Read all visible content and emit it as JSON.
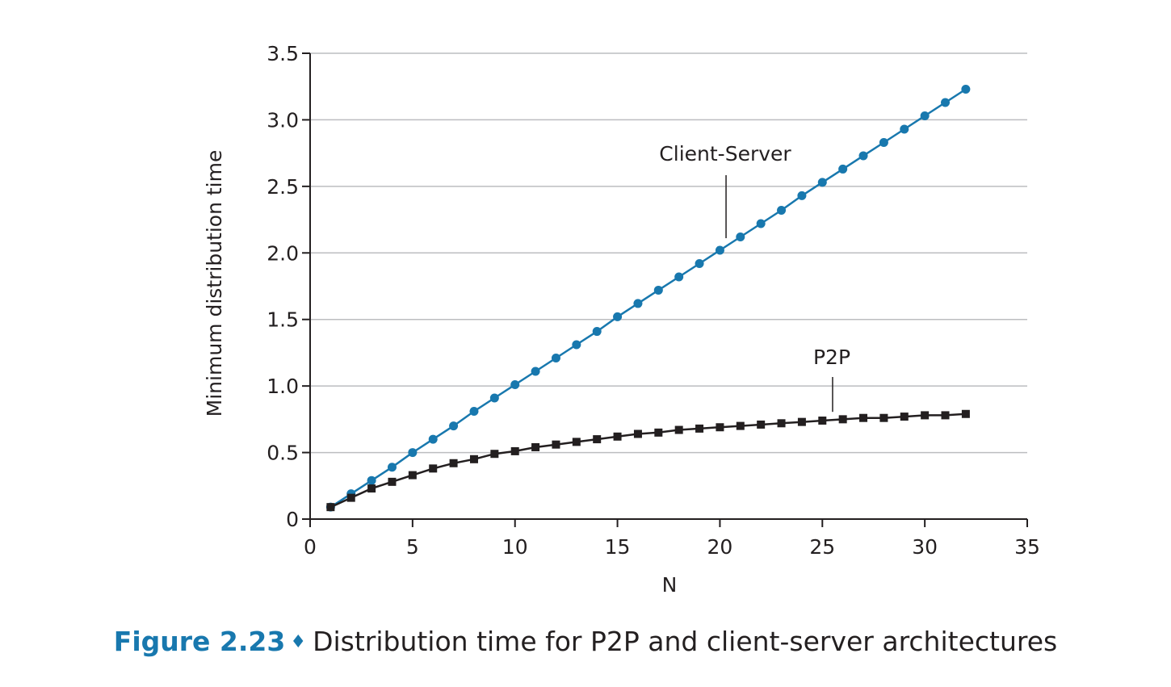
{
  "chart_data": {
    "type": "line",
    "xlabel": "N",
    "ylabel": "Minimum distribution time",
    "xlim": [
      0,
      35
    ],
    "ylim": [
      0,
      3.5
    ],
    "x_ticks": [
      "0",
      "5",
      "10",
      "15",
      "20",
      "25",
      "30",
      "35"
    ],
    "y_ticks": [
      "0",
      "0.5",
      "1.0",
      "1.5",
      "2.0",
      "2.5",
      "3.0",
      "3.5"
    ],
    "x_tick_values": [
      0,
      5,
      10,
      15,
      20,
      25,
      30,
      35
    ],
    "y_tick_values": [
      0,
      0.5,
      1.0,
      1.5,
      2.0,
      2.5,
      3.0,
      3.5
    ],
    "grid": "horizontal",
    "series": [
      {
        "name": "Client-Server",
        "color": "#1878ae",
        "marker": "circle",
        "x": [
          1,
          2,
          3,
          4,
          5,
          6,
          7,
          8,
          9,
          10,
          11,
          12,
          13,
          14,
          15,
          16,
          17,
          18,
          19,
          20,
          21,
          22,
          23,
          24,
          25,
          26,
          27,
          28,
          29,
          30,
          31,
          32
        ],
        "y": [
          0.09,
          0.19,
          0.29,
          0.39,
          0.5,
          0.6,
          0.7,
          0.81,
          0.91,
          1.01,
          1.11,
          1.21,
          1.31,
          1.41,
          1.52,
          1.62,
          1.72,
          1.82,
          1.92,
          2.02,
          2.12,
          2.22,
          2.32,
          2.43,
          2.53,
          2.63,
          2.73,
          2.83,
          2.93,
          3.03,
          3.13,
          3.23
        ]
      },
      {
        "name": "P2P",
        "color": "#231f20",
        "marker": "square",
        "x": [
          1,
          2,
          3,
          4,
          5,
          6,
          7,
          8,
          9,
          10,
          11,
          12,
          13,
          14,
          15,
          16,
          17,
          18,
          19,
          20,
          21,
          22,
          23,
          24,
          25,
          26,
          27,
          28,
          29,
          30,
          31,
          32
        ],
        "y": [
          0.09,
          0.16,
          0.23,
          0.28,
          0.33,
          0.38,
          0.42,
          0.45,
          0.49,
          0.51,
          0.54,
          0.56,
          0.58,
          0.6,
          0.62,
          0.64,
          0.65,
          0.67,
          0.68,
          0.69,
          0.7,
          0.71,
          0.72,
          0.73,
          0.74,
          0.75,
          0.76,
          0.76,
          0.77,
          0.78,
          0.78,
          0.79
        ]
      }
    ],
    "annotations": [
      {
        "text": "Client-Server",
        "series": 0,
        "at_x": 20.3
      },
      {
        "text": "P2P",
        "series": 1,
        "at_x": 25.5
      }
    ]
  },
  "caption": {
    "figure_number": "Figure 2.23",
    "separator": "♦",
    "text": "Distribution time for P2P and client-server architectures"
  }
}
